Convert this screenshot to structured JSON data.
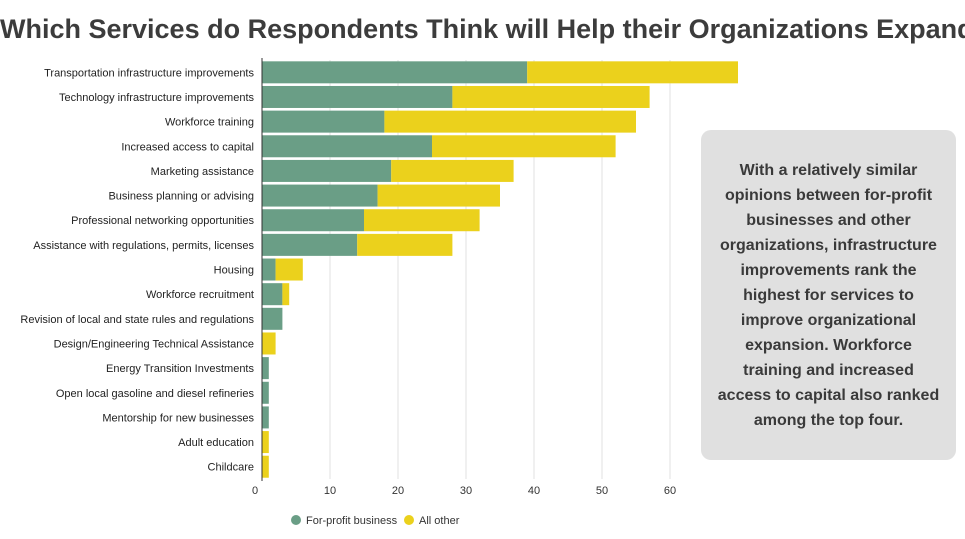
{
  "chart_data": {
    "type": "bar",
    "orientation": "horizontal",
    "stacked": true,
    "title": "Which Services do Respondents Think will Help their Organizations Expand?",
    "categories": [
      "Transportation infrastructure improvements",
      "Technology infrastructure improvements",
      "Workforce training",
      "Increased access to capital",
      "Marketing assistance",
      "Business planning or advising",
      "Professional networking opportunities",
      "Assistance with regulations, permits, licenses",
      "Housing",
      "Workforce recruitment",
      "Revision of local and state rules and regulations",
      "Design/Engineering Technical Assistance",
      "Energy Transition Investments",
      "Open local gasoline and diesel refineries",
      "Mentorship for new businesses",
      "Adult education",
      "Childcare"
    ],
    "series": [
      {
        "name": "For-profit business",
        "color": "#6a9e86",
        "values": [
          39,
          28,
          18,
          25,
          19,
          17,
          15,
          14,
          2,
          3,
          3,
          0,
          1,
          1,
          1,
          0,
          0
        ]
      },
      {
        "name": "All other",
        "color": "#ebd11c",
        "values": [
          31,
          29,
          37,
          27,
          18,
          18,
          17,
          14,
          4,
          1,
          0,
          2,
          0,
          0,
          0,
          1,
          1
        ]
      }
    ],
    "xticks": [
      0,
      10,
      20,
      30,
      40,
      50,
      60
    ],
    "xlim": [
      0,
      70
    ],
    "grid": true,
    "legend_position": "bottom"
  },
  "callout": {
    "text": "With a relatively similar opinions between for-profit businesses and other organizations, infrastructure improvements rank the highest for services to improve organizational expansion. Workforce training and increased access to capital also ranked among the top four."
  }
}
